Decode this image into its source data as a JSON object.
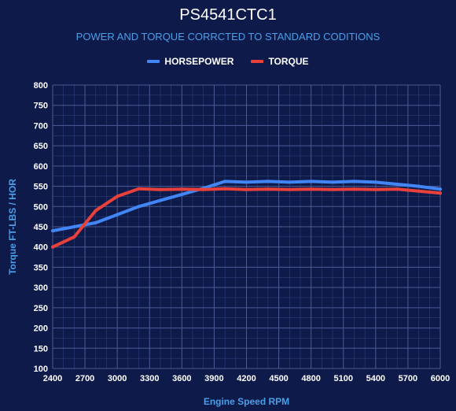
{
  "chart_data": {
    "type": "line",
    "title": "PS4541CTC1",
    "subtitle": "POWER AND TORQUE CORRCTED TO STANDARD CODITIONS",
    "xlabel": "Engine Speed RPM",
    "ylabel": "Torque FT-LBS / HOR",
    "xlim": [
      2400,
      6000
    ],
    "ylim": [
      100,
      800
    ],
    "x_ticks": [
      "2400",
      "2700",
      "3000",
      "3300",
      "3600",
      "3900",
      "4200",
      "4500",
      "4800",
      "5100",
      "5400",
      "5700",
      "6000"
    ],
    "y_ticks": [
      "100",
      "150",
      "200",
      "250",
      "300",
      "350",
      "400",
      "450",
      "500",
      "550",
      "600",
      "650",
      "700",
      "750",
      "800"
    ],
    "grid": true,
    "legend_position": "top-center",
    "x": [
      2400,
      2600,
      2800,
      3000,
      3200,
      3400,
      3600,
      3800,
      4000,
      4200,
      4400,
      4600,
      4800,
      5000,
      5200,
      5400,
      5600,
      5800,
      6000
    ],
    "series": [
      {
        "name": "HORSEPOWER",
        "color": "#4285f4",
        "values": [
          440,
          450,
          460,
          480,
          500,
          515,
          530,
          545,
          562,
          560,
          562,
          560,
          562,
          560,
          562,
          560,
          555,
          550,
          543
        ]
      },
      {
        "name": "TORQUE",
        "color": "#e8403a",
        "values": [
          400,
          425,
          490,
          525,
          544,
          542,
          543,
          542,
          544,
          542,
          543,
          542,
          543,
          542,
          543,
          542,
          543,
          538,
          533
        ]
      }
    ]
  }
}
